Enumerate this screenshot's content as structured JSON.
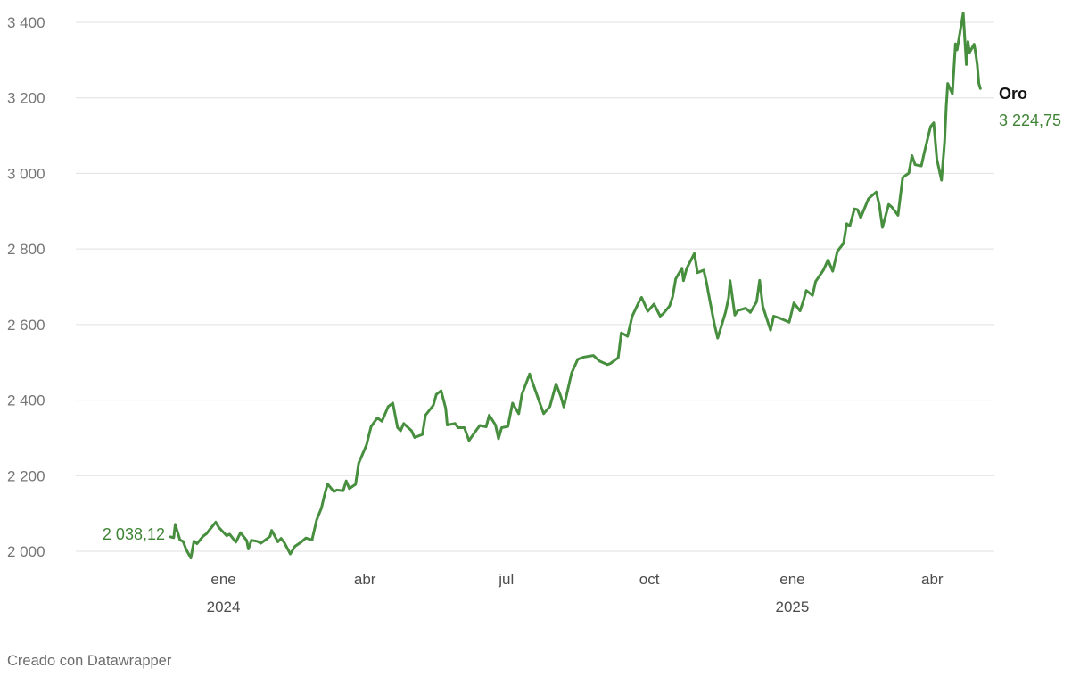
{
  "footer": {
    "credit": "Creado con Datawrapper"
  },
  "chart_data": {
    "type": "line",
    "title": "",
    "xlabel": "",
    "ylabel": "",
    "series_name": "Oro",
    "start_label": "2 038,12",
    "end_label": "3 224,75",
    "line_color": "#478f3f",
    "grid_color": "#e0e0e0",
    "axis_text_color": "#767676",
    "x_tick_text_color": "#4d4d4d",
    "grid": true,
    "legend_position": "end-of-line",
    "y_domain": [
      2000,
      3400
    ],
    "x_domain": [
      "2023-09-28",
      "2025-05-11"
    ],
    "y_ticks": [
      {
        "value": 2000,
        "label": "2 000"
      },
      {
        "value": 2200,
        "label": "2 200"
      },
      {
        "value": 2400,
        "label": "2 400"
      },
      {
        "value": 2600,
        "label": "2 600"
      },
      {
        "value": 2800,
        "label": "2 800"
      },
      {
        "value": 3000,
        "label": "3 000"
      },
      {
        "value": 3200,
        "label": "3 200"
      },
      {
        "value": 3400,
        "label": "3 400"
      }
    ],
    "x_ticks": [
      {
        "date": "2024-01-01",
        "label": "ene",
        "year": "2024"
      },
      {
        "date": "2024-04-01",
        "label": "abr"
      },
      {
        "date": "2024-07-01",
        "label": "jul"
      },
      {
        "date": "2024-10-01",
        "label": "oct"
      },
      {
        "date": "2025-01-01",
        "label": "ene",
        "year": "2025"
      },
      {
        "date": "2025-04-01",
        "label": "abr"
      }
    ],
    "points": [
      [
        "2023-11-28",
        2038.12
      ],
      [
        "2023-11-30",
        2036
      ],
      [
        "2023-12-01",
        2071
      ],
      [
        "2023-12-04",
        2030
      ],
      [
        "2023-12-06",
        2026
      ],
      [
        "2023-12-08",
        2005
      ],
      [
        "2023-12-11",
        1982
      ],
      [
        "2023-12-13",
        2027
      ],
      [
        "2023-12-15",
        2020
      ],
      [
        "2023-12-19",
        2040
      ],
      [
        "2023-12-21",
        2046
      ],
      [
        "2023-12-27",
        2077
      ],
      [
        "2023-12-29",
        2063
      ],
      [
        "2024-01-03",
        2041
      ],
      [
        "2024-01-05",
        2045
      ],
      [
        "2024-01-09",
        2024
      ],
      [
        "2024-01-12",
        2049
      ],
      [
        "2024-01-16",
        2028
      ],
      [
        "2024-01-17",
        2006
      ],
      [
        "2024-01-19",
        2029
      ],
      [
        "2024-01-23",
        2026
      ],
      [
        "2024-01-25",
        2021
      ],
      [
        "2024-01-29",
        2033
      ],
      [
        "2024-01-31",
        2040
      ],
      [
        "2024-02-01",
        2055
      ],
      [
        "2024-02-05",
        2025
      ],
      [
        "2024-02-07",
        2034
      ],
      [
        "2024-02-09",
        2024
      ],
      [
        "2024-02-13",
        1993
      ],
      [
        "2024-02-16",
        2013
      ],
      [
        "2024-02-20",
        2024
      ],
      [
        "2024-02-23",
        2035
      ],
      [
        "2024-02-27",
        2030
      ],
      [
        "2024-03-01",
        2083
      ],
      [
        "2024-03-04",
        2114
      ],
      [
        "2024-03-06",
        2148
      ],
      [
        "2024-03-08",
        2178
      ],
      [
        "2024-03-12",
        2158
      ],
      [
        "2024-03-14",
        2162
      ],
      [
        "2024-03-18",
        2160
      ],
      [
        "2024-03-20",
        2186
      ],
      [
        "2024-03-22",
        2166
      ],
      [
        "2024-03-26",
        2177
      ],
      [
        "2024-03-28",
        2233
      ],
      [
        "2024-04-02",
        2281
      ],
      [
        "2024-04-05",
        2330
      ],
      [
        "2024-04-09",
        2353
      ],
      [
        "2024-04-12",
        2344
      ],
      [
        "2024-04-16",
        2383
      ],
      [
        "2024-04-19",
        2392
      ],
      [
        "2024-04-22",
        2327
      ],
      [
        "2024-04-24",
        2319
      ],
      [
        "2024-04-26",
        2338
      ],
      [
        "2024-05-01",
        2319
      ],
      [
        "2024-05-03",
        2301
      ],
      [
        "2024-05-08",
        2309
      ],
      [
        "2024-05-10",
        2360
      ],
      [
        "2024-05-15",
        2386
      ],
      [
        "2024-05-17",
        2415
      ],
      [
        "2024-05-20",
        2425
      ],
      [
        "2024-05-23",
        2378
      ],
      [
        "2024-05-24",
        2334
      ],
      [
        "2024-05-29",
        2338
      ],
      [
        "2024-05-31",
        2327
      ],
      [
        "2024-06-04",
        2327
      ],
      [
        "2024-06-07",
        2293
      ],
      [
        "2024-06-12",
        2322
      ],
      [
        "2024-06-14",
        2333
      ],
      [
        "2024-06-18",
        2329
      ],
      [
        "2024-06-20",
        2360
      ],
      [
        "2024-06-24",
        2334
      ],
      [
        "2024-06-26",
        2298
      ],
      [
        "2024-06-28",
        2327
      ],
      [
        "2024-07-02",
        2330
      ],
      [
        "2024-07-05",
        2392
      ],
      [
        "2024-07-09",
        2364
      ],
      [
        "2024-07-11",
        2415
      ],
      [
        "2024-07-16",
        2469
      ],
      [
        "2024-07-18",
        2445
      ],
      [
        "2024-07-22",
        2398
      ],
      [
        "2024-07-25",
        2364
      ],
      [
        "2024-07-29",
        2383
      ],
      [
        "2024-08-02",
        2443
      ],
      [
        "2024-08-05",
        2410
      ],
      [
        "2024-08-07",
        2382
      ],
      [
        "2024-08-12",
        2472
      ],
      [
        "2024-08-16",
        2508
      ],
      [
        "2024-08-20",
        2514
      ],
      [
        "2024-08-26",
        2518
      ],
      [
        "2024-08-30",
        2503
      ],
      [
        "2024-09-04",
        2494
      ],
      [
        "2024-09-06",
        2497
      ],
      [
        "2024-09-11",
        2512
      ],
      [
        "2024-09-13",
        2578
      ],
      [
        "2024-09-17",
        2569
      ],
      [
        "2024-09-20",
        2622
      ],
      [
        "2024-09-24",
        2657
      ],
      [
        "2024-09-26",
        2672
      ],
      [
        "2024-09-30",
        2635
      ],
      [
        "2024-10-04",
        2654
      ],
      [
        "2024-10-08",
        2622
      ],
      [
        "2024-10-10",
        2629
      ],
      [
        "2024-10-14",
        2649
      ],
      [
        "2024-10-16",
        2673
      ],
      [
        "2024-10-18",
        2721
      ],
      [
        "2024-10-22",
        2749
      ],
      [
        "2024-10-23",
        2716
      ],
      [
        "2024-10-25",
        2748
      ],
      [
        "2024-10-30",
        2788
      ],
      [
        "2024-11-01",
        2737
      ],
      [
        "2024-11-05",
        2744
      ],
      [
        "2024-11-07",
        2707
      ],
      [
        "2024-11-08",
        2684
      ],
      [
        "2024-11-12",
        2598
      ],
      [
        "2024-11-14",
        2564
      ],
      [
        "2024-11-19",
        2632
      ],
      [
        "2024-11-21",
        2670
      ],
      [
        "2024-11-22",
        2716
      ],
      [
        "2024-11-25",
        2625
      ],
      [
        "2024-11-27",
        2637
      ],
      [
        "2024-12-02",
        2643
      ],
      [
        "2024-12-05",
        2632
      ],
      [
        "2024-12-09",
        2660
      ],
      [
        "2024-12-11",
        2717
      ],
      [
        "2024-12-13",
        2648
      ],
      [
        "2024-12-18",
        2585
      ],
      [
        "2024-12-20",
        2622
      ],
      [
        "2024-12-24",
        2617
      ],
      [
        "2024-12-30",
        2606
      ],
      [
        "2025-01-02",
        2657
      ],
      [
        "2025-01-06",
        2636
      ],
      [
        "2025-01-08",
        2661
      ],
      [
        "2025-01-10",
        2690
      ],
      [
        "2025-01-14",
        2677
      ],
      [
        "2025-01-16",
        2714
      ],
      [
        "2025-01-21",
        2744
      ],
      [
        "2025-01-24",
        2771
      ],
      [
        "2025-01-27",
        2741
      ],
      [
        "2025-01-30",
        2794
      ],
      [
        "2025-02-03",
        2815
      ],
      [
        "2025-02-05",
        2867
      ],
      [
        "2025-02-07",
        2861
      ],
      [
        "2025-02-10",
        2906
      ],
      [
        "2025-02-12",
        2904
      ],
      [
        "2025-02-14",
        2883
      ],
      [
        "2025-02-19",
        2933
      ],
      [
        "2025-02-24",
        2951
      ],
      [
        "2025-02-26",
        2916
      ],
      [
        "2025-02-28",
        2857
      ],
      [
        "2025-03-04",
        2918
      ],
      [
        "2025-03-06",
        2911
      ],
      [
        "2025-03-10",
        2889
      ],
      [
        "2025-03-13",
        2989
      ],
      [
        "2025-03-17",
        3001
      ],
      [
        "2025-03-19",
        3047
      ],
      [
        "2025-03-21",
        3023
      ],
      [
        "2025-03-25",
        3020
      ],
      [
        "2025-03-27",
        3057
      ],
      [
        "2025-03-31",
        3124
      ],
      [
        "2025-04-02",
        3134
      ],
      [
        "2025-04-04",
        3038
      ],
      [
        "2025-04-07",
        2982
      ],
      [
        "2025-04-09",
        3083
      ],
      [
        "2025-04-10",
        3176
      ],
      [
        "2025-04-11",
        3238
      ],
      [
        "2025-04-14",
        3211
      ],
      [
        "2025-04-16",
        3343
      ],
      [
        "2025-04-17",
        3327
      ],
      [
        "2025-04-21",
        3424
      ],
      [
        "2025-04-23",
        3288
      ],
      [
        "2025-04-24",
        3349
      ],
      [
        "2025-04-25",
        3320
      ],
      [
        "2025-04-28",
        3342
      ],
      [
        "2025-04-29",
        3317
      ],
      [
        "2025-04-30",
        3288
      ],
      [
        "2025-05-01",
        3238
      ],
      [
        "2025-05-02",
        3224.75
      ]
    ]
  }
}
